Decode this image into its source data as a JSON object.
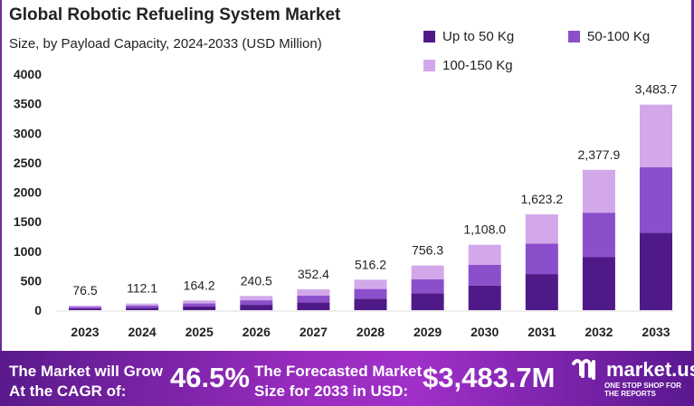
{
  "chart_data": {
    "type": "bar",
    "stacked": true,
    "title": "Global Robotic Refueling System Market",
    "subtitle": "Size, by Payload Capacity, 2024-2033 (USD Million)",
    "categories": [
      "2023",
      "2024",
      "2025",
      "2026",
      "2027",
      "2028",
      "2029",
      "2030",
      "2031",
      "2032",
      "2033"
    ],
    "series": [
      {
        "name": "Up to 50 Kg",
        "color": "#4f1a87",
        "values": [
          28.8,
          42.3,
          61.9,
          90.7,
          132.9,
          194.6,
          285.1,
          417.7,
          611.9,
          896.5,
          1313.4
        ]
      },
      {
        "name": "50-100 Kg",
        "color": "#8b4fcc",
        "values": [
          24.3,
          35.6,
          52.2,
          76.5,
          112.1,
          164.2,
          240.5,
          352.3,
          516.2,
          756.2,
          1107.8
        ]
      },
      {
        "name": "100-150 Kg",
        "color": "#d3a8ea",
        "values": [
          23.4,
          34.2,
          50.1,
          73.3,
          107.4,
          157.4,
          230.7,
          338.0,
          495.1,
          725.2,
          1062.5
        ]
      }
    ],
    "totals": [
      "76.5",
      "112.1",
      "164.2",
      "240.5",
      "352.4",
      "516.2",
      "756.3",
      "1,108.0",
      "1,623.2",
      "2,377.9",
      "3,483.7"
    ],
    "yticks": [
      "0",
      "500",
      "1000",
      "1500",
      "2000",
      "2500",
      "3000",
      "3500",
      "4000"
    ],
    "ylim": [
      0,
      4000
    ],
    "grid": false,
    "legend": "top-right"
  },
  "footer": {
    "cagr_label_1": "The Market will Grow",
    "cagr_label_2": "At the CAGR of:",
    "cagr_value": "46.5%",
    "forecast_label_1": "The Forecasted Market",
    "forecast_label_2": "Size for 2033 in USD:",
    "forecast_value": "$3,483.7M",
    "logo_text": "market.us",
    "logo_tagline": "ONE STOP SHOP FOR THE REPORTS"
  }
}
